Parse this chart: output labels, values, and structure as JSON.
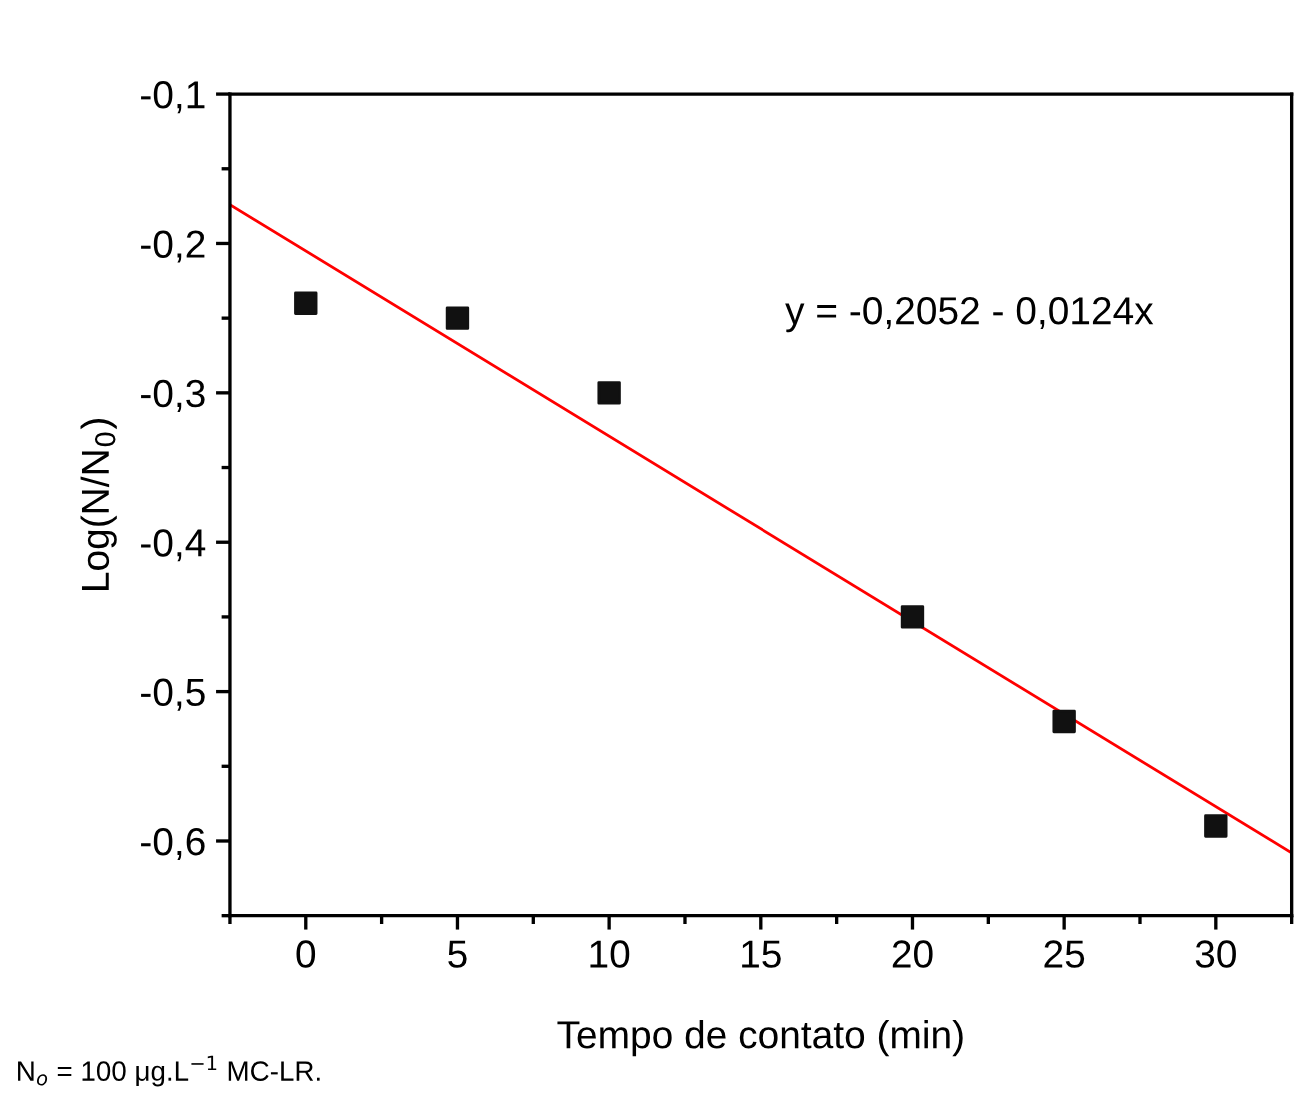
{
  "chart_data": {
    "type": "scatter",
    "xlabel": "Tempo de contato (min)",
    "ylabel": "Log(N/N$_{0}$)",
    "x": [
      0,
      5,
      10,
      20,
      25,
      30
    ],
    "series": [
      {
        "color": "#111111",
        "marker": "square",
        "values": [
          -0.24,
          -0.25,
          -0.3,
          -0.45,
          -0.52,
          -0.59
        ]
      },
      {
        "type": "line",
        "color": "#ff0000",
        "x": [
          -2.5,
          32.5
        ],
        "values": [
          -0.174,
          -0.608
        ]
      }
    ],
    "xlim": [
      -2.5,
      32.5
    ],
    "ylim": [
      -0.65,
      -0.1
    ],
    "xticks": [
      {
        "value": -2.5,
        "label": null
      },
      0,
      {
        "value": 2.5,
        "label": null
      },
      5,
      {
        "value": 7.5,
        "label": null
      },
      10,
      {
        "value": 12.5,
        "label": null
      },
      15,
      {
        "value": 17.5,
        "label": null
      },
      20,
      {
        "value": 22.5,
        "label": null
      },
      25,
      {
        "value": 27.5,
        "label": null
      },
      30,
      {
        "value": 32.5,
        "label": null
      }
    ],
    "yticks": [
      {
        "value": -0.65,
        "label": null
      },
      {
        "value": -0.6,
        "label": "-0,6"
      },
      {
        "value": -0.55,
        "label": null
      },
      {
        "value": -0.5,
        "label": "-0,5"
      },
      {
        "value": -0.45,
        "label": null
      },
      {
        "value": -0.4,
        "label": "-0,4"
      },
      {
        "value": -0.35,
        "label": null
      },
      {
        "value": -0.3,
        "label": "-0,3"
      },
      {
        "value": -0.25,
        "label": null
      },
      {
        "value": -0.2,
        "label": "-0,2"
      },
      {
        "value": -0.15,
        "label": null
      },
      {
        "value": -0.1,
        "label": "-0,1"
      }
    ],
    "grid": false,
    "legend": false,
    "annotations": [
      "y = -0,2052 - 0,0124x",
      "N$_{o}$ = 100 μg.L$^{−1}$ MC-LR."
    ]
  }
}
